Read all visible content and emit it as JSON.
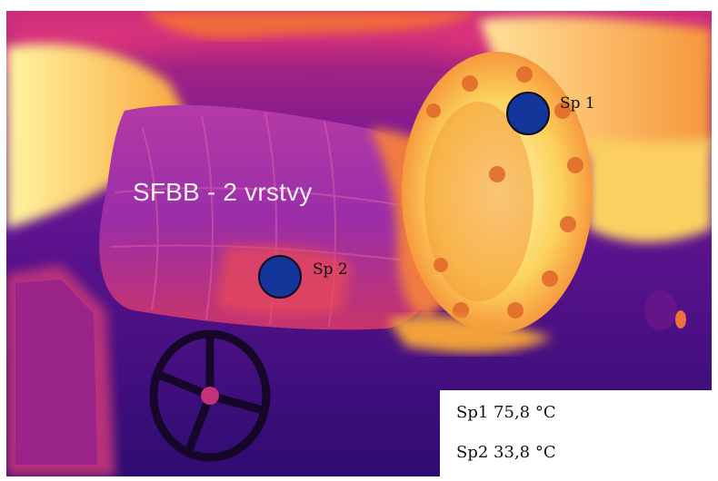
{
  "image": {
    "overlay_text": "SFBB - 2 vrstvy",
    "palette": [
      "#1a0a5a",
      "#4a1096",
      "#8a1ea0",
      "#d42a6e",
      "#f25a2a",
      "#fbb33a",
      "#fff6a8"
    ]
  },
  "spots": [
    {
      "id": "sp1",
      "label": "Sp 1"
    },
    {
      "id": "sp2",
      "label": "Sp 2"
    }
  ],
  "readouts": [
    {
      "label": "Sp1",
      "value": "75,8 °C"
    },
    {
      "label": "Sp2",
      "value": "33,8 °C"
    }
  ]
}
